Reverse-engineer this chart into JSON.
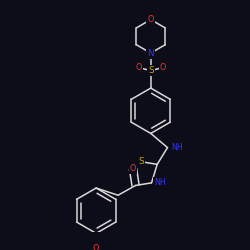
{
  "bg_color": "#0d0d1a",
  "bond_color": "#d8d8d8",
  "atom_colors": {
    "O": "#ff3333",
    "N": "#3333ff",
    "S": "#ccaa00",
    "C": "#d8d8d8",
    "H": "#d8d8d8"
  },
  "lw": 1.1,
  "fontsize": 5.8
}
